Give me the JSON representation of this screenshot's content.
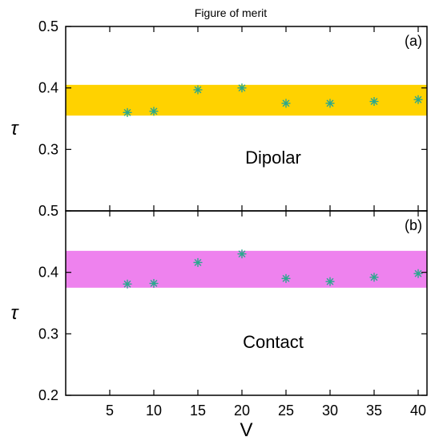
{
  "title": "Figure of merit",
  "chart_data": [
    {
      "type": "scatter",
      "panel_label": "(a)",
      "annotation": "Dipolar",
      "ylabel": "τ",
      "xlabel": "",
      "xlim": [
        0,
        41
      ],
      "ylim": [
        0.2,
        0.5
      ],
      "yticks": [
        "0.3",
        "0.4",
        "0.5"
      ],
      "xticks": [],
      "band": {
        "from": 0.355,
        "to": 0.405,
        "color": "#ffd200"
      },
      "marker_color": "#2aa88e",
      "x": [
        7,
        10,
        15,
        20,
        25,
        30,
        35,
        40
      ],
      "y": [
        0.36,
        0.362,
        0.397,
        0.4,
        0.375,
        0.375,
        0.378,
        0.381
      ]
    },
    {
      "type": "scatter",
      "panel_label": "(b)",
      "annotation": "Contact",
      "ylabel": "τ",
      "xlabel": "V",
      "xlim": [
        0,
        41
      ],
      "ylim": [
        0.2,
        0.5
      ],
      "yticks": [
        "0.2",
        "0.3",
        "0.4",
        "0.5"
      ],
      "xticks": [
        "5",
        "10",
        "15",
        "20",
        "25",
        "30",
        "35",
        "40"
      ],
      "band": {
        "from": 0.375,
        "to": 0.435,
        "color": "#ee82ee"
      },
      "marker_color": "#2aa88e",
      "x": [
        7,
        10,
        15,
        20,
        25,
        30,
        35,
        40
      ],
      "y": [
        0.381,
        0.382,
        0.416,
        0.43,
        0.39,
        0.385,
        0.392,
        0.398
      ]
    }
  ]
}
